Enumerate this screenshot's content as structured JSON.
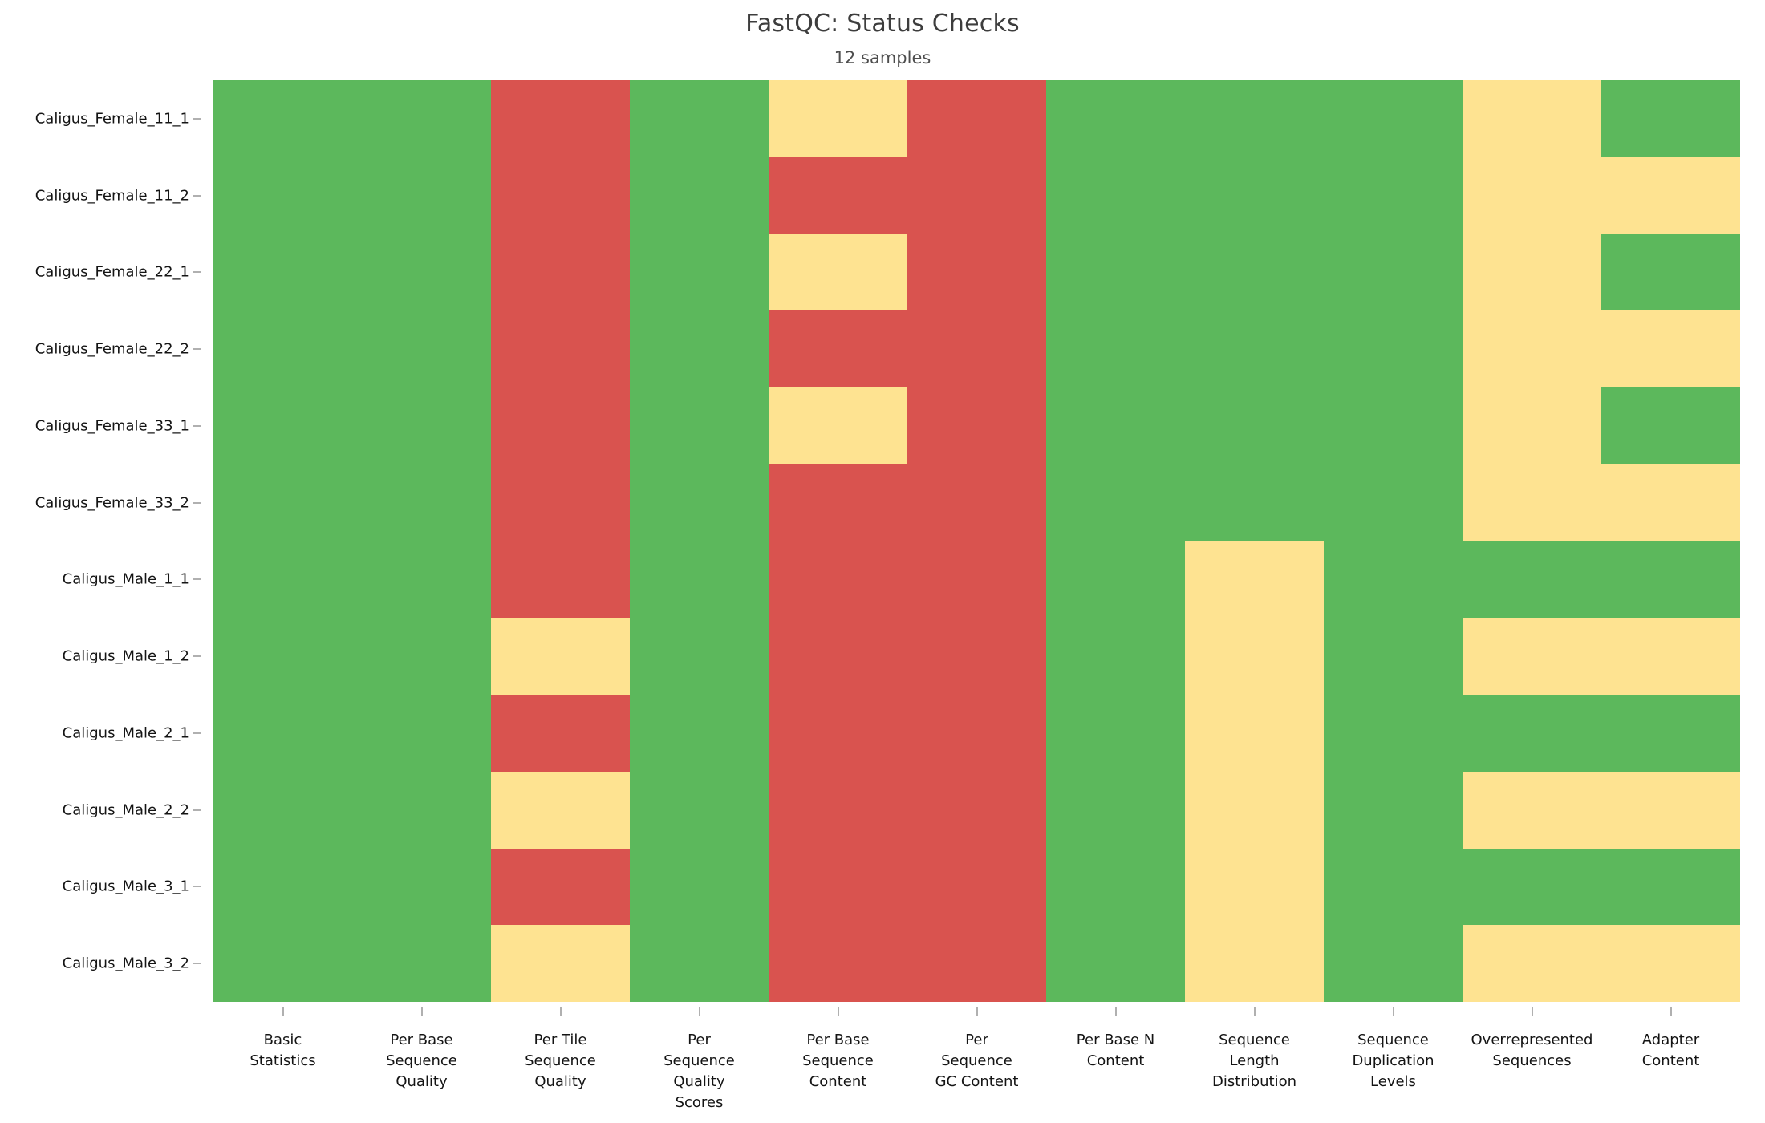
{
  "header": {
    "title": "FastQC: Status Checks",
    "subtitle": "12 samples"
  },
  "chart_data": {
    "type": "heatmap",
    "title": "FastQC: Status Checks",
    "subtitle": "12 samples",
    "legend": "none",
    "grid": false,
    "rows": [
      "Caligus_Female_11_1",
      "Caligus_Female_11_2",
      "Caligus_Female_22_1",
      "Caligus_Female_22_2",
      "Caligus_Female_33_1",
      "Caligus_Female_33_2",
      "Caligus_Male_1_1",
      "Caligus_Male_1_2",
      "Caligus_Male_2_1",
      "Caligus_Male_2_2",
      "Caligus_Male_3_1",
      "Caligus_Male_3_2"
    ],
    "columns": [
      "Basic Statistics",
      "Per Base Sequence Quality",
      "Per Tile Sequence Quality",
      "Per Sequence Quality Scores",
      "Per Base Sequence Content",
      "Per Sequence GC Content",
      "Per Base N Content",
      "Sequence Length Distribution",
      "Sequence Duplication Levels",
      "Overrepresented Sequences",
      "Adapter Content"
    ],
    "column_label_lines": [
      "Basic\nStatistics",
      "Per Base\nSequence\nQuality",
      "Per Tile\nSequence\nQuality",
      "Per\nSequence\nQuality\nScores",
      "Per Base\nSequence\nContent",
      "Per\nSequence\nGC Content",
      "Per Base N\nContent",
      "Sequence\nLength\nDistribution",
      "Sequence\nDuplication\nLevels",
      "Overrepresented\nSequences",
      "Adapter\nContent"
    ],
    "status_colors": {
      "pass": "#5cb85c",
      "warn": "#fee391",
      "fail": "#d9534f"
    },
    "statuses": [
      [
        "pass",
        "pass",
        "fail",
        "pass",
        "warn",
        "fail",
        "pass",
        "pass",
        "pass",
        "warn",
        "pass"
      ],
      [
        "pass",
        "pass",
        "fail",
        "pass",
        "fail",
        "fail",
        "pass",
        "pass",
        "pass",
        "warn",
        "warn"
      ],
      [
        "pass",
        "pass",
        "fail",
        "pass",
        "warn",
        "fail",
        "pass",
        "pass",
        "pass",
        "warn",
        "pass"
      ],
      [
        "pass",
        "pass",
        "fail",
        "pass",
        "fail",
        "fail",
        "pass",
        "pass",
        "pass",
        "warn",
        "warn"
      ],
      [
        "pass",
        "pass",
        "fail",
        "pass",
        "warn",
        "fail",
        "pass",
        "pass",
        "pass",
        "warn",
        "pass"
      ],
      [
        "pass",
        "pass",
        "fail",
        "pass",
        "fail",
        "fail",
        "pass",
        "pass",
        "pass",
        "warn",
        "warn"
      ],
      [
        "pass",
        "pass",
        "fail",
        "pass",
        "fail",
        "fail",
        "pass",
        "warn",
        "pass",
        "pass",
        "pass"
      ],
      [
        "pass",
        "pass",
        "warn",
        "pass",
        "fail",
        "fail",
        "pass",
        "warn",
        "pass",
        "warn",
        "warn"
      ],
      [
        "pass",
        "pass",
        "fail",
        "pass",
        "fail",
        "fail",
        "pass",
        "warn",
        "pass",
        "pass",
        "pass"
      ],
      [
        "pass",
        "pass",
        "warn",
        "pass",
        "fail",
        "fail",
        "pass",
        "warn",
        "pass",
        "warn",
        "warn"
      ],
      [
        "pass",
        "pass",
        "fail",
        "pass",
        "fail",
        "fail",
        "pass",
        "warn",
        "pass",
        "pass",
        "pass"
      ],
      [
        "pass",
        "pass",
        "warn",
        "pass",
        "fail",
        "fail",
        "pass",
        "warn",
        "pass",
        "warn",
        "warn"
      ]
    ]
  }
}
